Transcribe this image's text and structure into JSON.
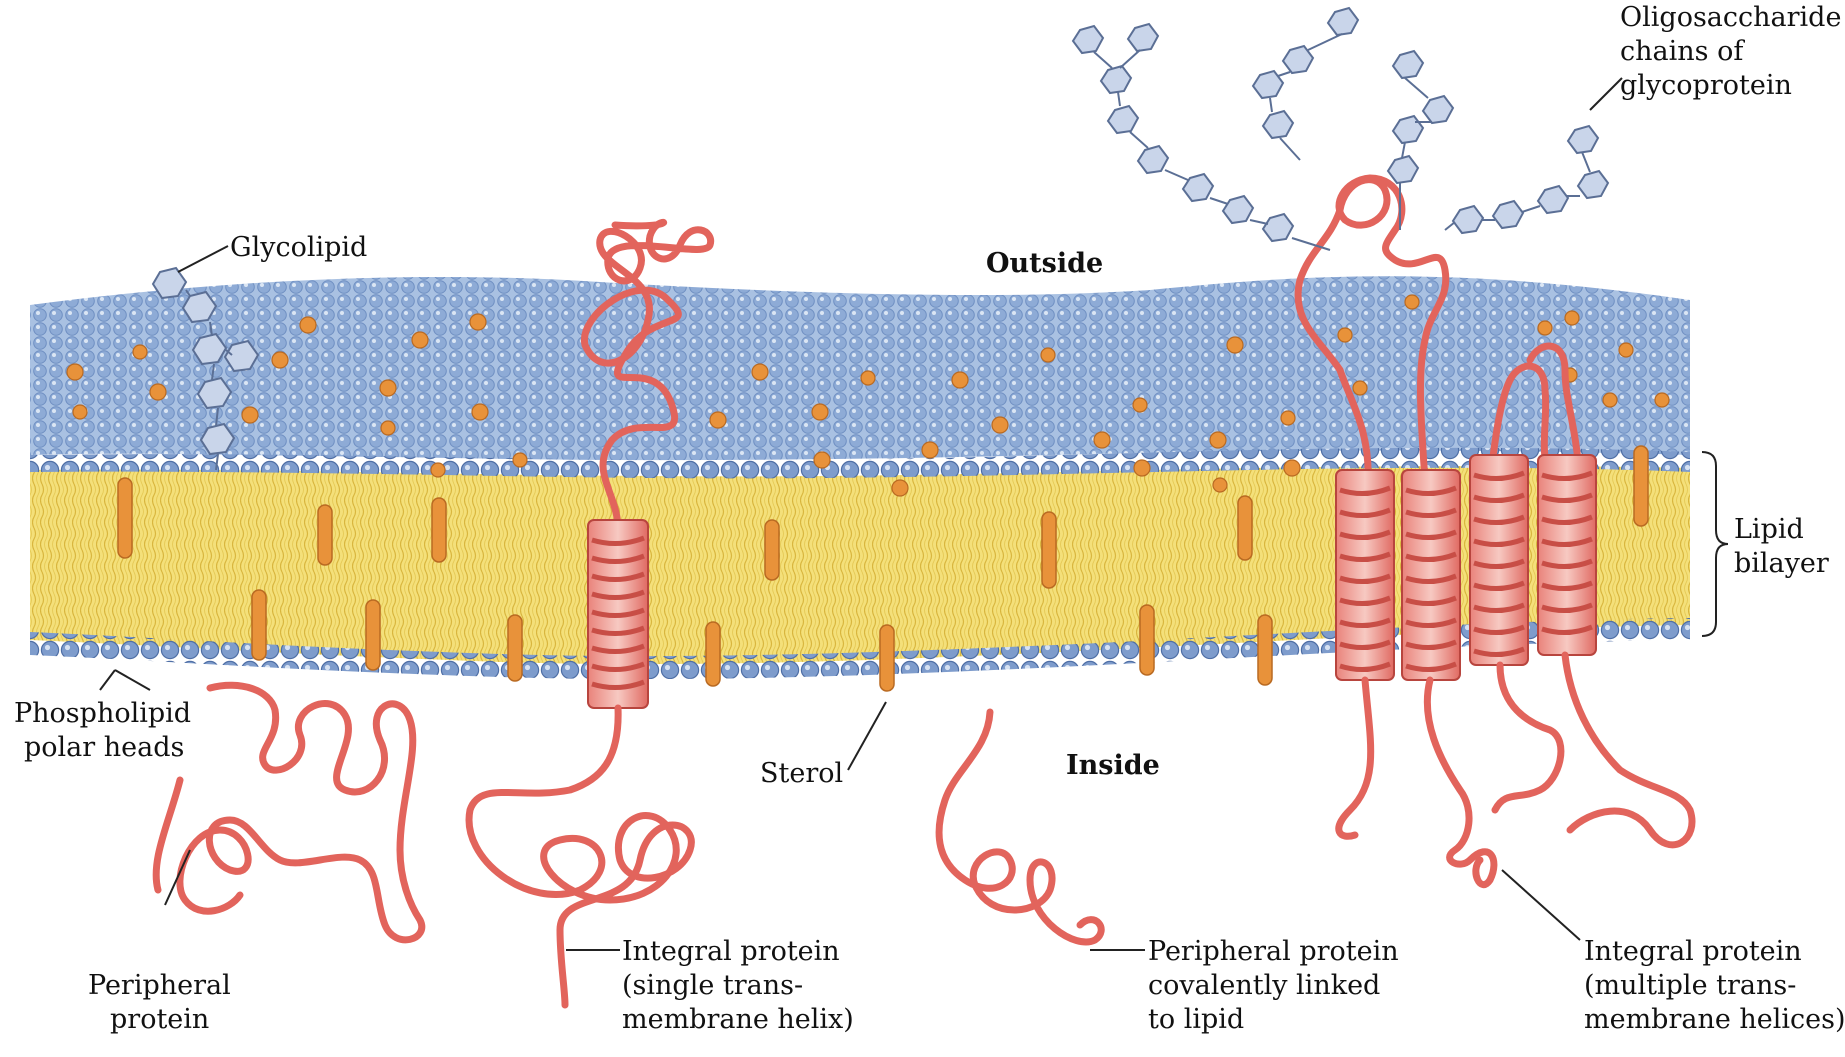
{
  "colors": {
    "outer_surface": "#9db8dc",
    "polar_head": "#7e9ccc",
    "lipid_core": "#f2dd72",
    "sterol": "#e8923a",
    "protein": "#e2645c",
    "sugar_ring": "#8da4c9"
  },
  "labels": {
    "glycolipid": "Glycolipid",
    "outside": "Outside",
    "inside": "Inside",
    "oligosaccharide": [
      "Oligosaccharide",
      "chains of",
      "glycoprotein"
    ],
    "lipid_bilayer": [
      "Lipid",
      "bilayer"
    ],
    "phospholipid": [
      "Phospholipid",
      "polar heads"
    ],
    "sterol": "Sterol",
    "peripheral_protein": [
      "Peripheral",
      "protein"
    ],
    "integral_single": [
      "Integral protein",
      "(single trans-",
      "membrane helix)"
    ],
    "peripheral_covalent": [
      "Peripheral protein",
      "covalently linked",
      "to lipid"
    ],
    "integral_multiple": [
      "Integral protein",
      "(multiple trans-",
      "membrane helices)"
    ]
  },
  "icons": [
    "sugar-ring-icon",
    "sterol-icon",
    "polar-head-icon"
  ]
}
